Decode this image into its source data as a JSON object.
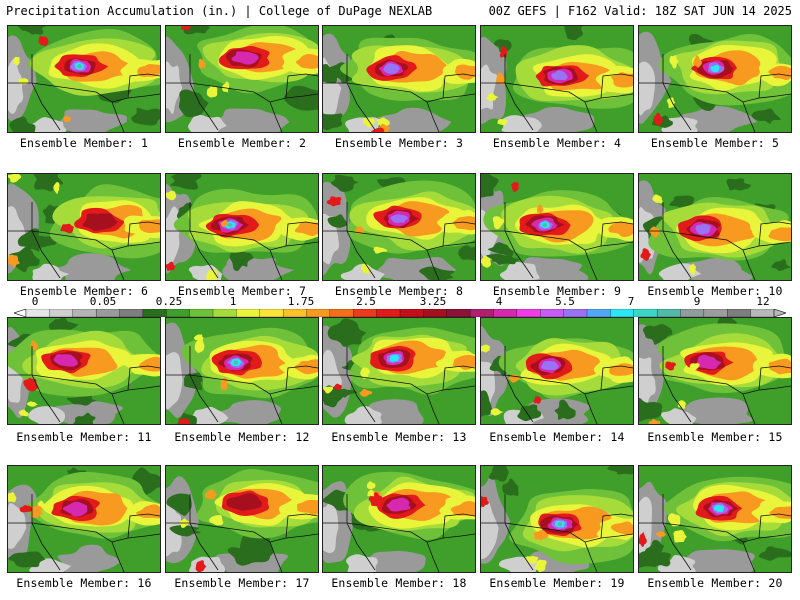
{
  "header": {
    "left_title": "Precipitation Accumulation (in.) | College of DuPage NEXLAB",
    "right_title": "00Z GEFS | F162 Valid: 18Z SAT JUN 14 2025"
  },
  "colorbar": {
    "tick_labels": [
      "0",
      "0.05",
      "0.25",
      "1",
      "1.75",
      "2.5",
      "3.25",
      "4",
      "5.5",
      "7",
      "9",
      "12"
    ],
    "colors": [
      "#e6e6e6",
      "#cfcfcf",
      "#b4b4b4",
      "#9a9a9a",
      "#7e7e7e",
      "#2a6e1d",
      "#3f9f2a",
      "#6fc13a",
      "#a6dc3a",
      "#e9f53a",
      "#fbe33a",
      "#fbc02a",
      "#f89a1f",
      "#f46f1a",
      "#ee3a1a",
      "#e21a1a",
      "#c40f1a",
      "#a6101e",
      "#8c1238",
      "#b01f70",
      "#d629b0",
      "#f03ce6",
      "#c95cf5",
      "#9a72f6",
      "#4fa9f7",
      "#2be6f4",
      "#3ad6c8",
      "#52bba7",
      "#8f9d9d",
      "#9c9c9c",
      "#7e7e7e",
      "#b8b8b8"
    ]
  },
  "palette": {
    "panel_background": "#3f9f2a",
    "gray_dry": "#9a9a9a",
    "gray_light": "#cfcfcf",
    "white_dry": "#f4f4f4",
    "green_dark": "#2a6e1d",
    "green_light": "#6fc13a",
    "lime": "#a6dc3a",
    "yellow": "#e9f53a",
    "orange": "#f89a1f",
    "red": "#e21a1a",
    "maroon": "#a6101e",
    "magenta": "#d629b0",
    "purple": "#9a72f6",
    "cyan": "#2be6f4",
    "teal": "#52bba7",
    "boundary": "#111111"
  },
  "members": [
    {
      "label": "Ensemble Member: 1",
      "core": [
        0.47,
        0.38
      ],
      "intensity": 6.5
    },
    {
      "label": "Ensemble Member: 2",
      "core": [
        0.52,
        0.3
      ],
      "intensity": 4.0
    },
    {
      "label": "Ensemble Member: 3",
      "core": [
        0.45,
        0.4
      ],
      "intensity": 5.5
    },
    {
      "label": "Ensemble Member: 4",
      "core": [
        0.52,
        0.47
      ],
      "intensity": 5.5
    },
    {
      "label": "Ensemble Member: 5",
      "core": [
        0.5,
        0.4
      ],
      "intensity": 6.0
    },
    {
      "label": "Ensemble Member: 6",
      "core": [
        0.6,
        0.45
      ],
      "intensity": 3.5
    },
    {
      "label": "Ensemble Member: 7",
      "core": [
        0.42,
        0.48
      ],
      "intensity": 6.5
    },
    {
      "label": "Ensemble Member: 8",
      "core": [
        0.5,
        0.42
      ],
      "intensity": 5.0
    },
    {
      "label": "Ensemble Member: 9",
      "core": [
        0.42,
        0.48
      ],
      "intensity": 7.0
    },
    {
      "label": "Ensemble Member: 10",
      "core": [
        0.42,
        0.52
      ],
      "intensity": 5.0
    },
    {
      "label": "Ensemble Member: 11",
      "core": [
        0.38,
        0.4
      ],
      "intensity": 4.0
    },
    {
      "label": "Ensemble Member: 12",
      "core": [
        0.46,
        0.42
      ],
      "intensity": 6.5
    },
    {
      "label": "Ensemble Member: 13",
      "core": [
        0.47,
        0.38
      ],
      "intensity": 6.0
    },
    {
      "label": "Ensemble Member: 14",
      "core": [
        0.45,
        0.45
      ],
      "intensity": 5.0
    },
    {
      "label": "Ensemble Member: 15",
      "core": [
        0.45,
        0.42
      ],
      "intensity": 4.0
    },
    {
      "label": "Ensemble Member: 16",
      "core": [
        0.45,
        0.4
      ],
      "intensity": 4.0
    },
    {
      "label": "Ensemble Member: 17",
      "core": [
        0.52,
        0.35
      ],
      "intensity": 3.5
    },
    {
      "label": "Ensemble Member: 18",
      "core": [
        0.5,
        0.37
      ],
      "intensity": 4.5
    },
    {
      "label": "Ensemble Member: 19",
      "core": [
        0.52,
        0.55
      ],
      "intensity": 7.0
    },
    {
      "label": "Ensemble Member: 20",
      "core": [
        0.53,
        0.4
      ],
      "intensity": 6.0
    }
  ]
}
